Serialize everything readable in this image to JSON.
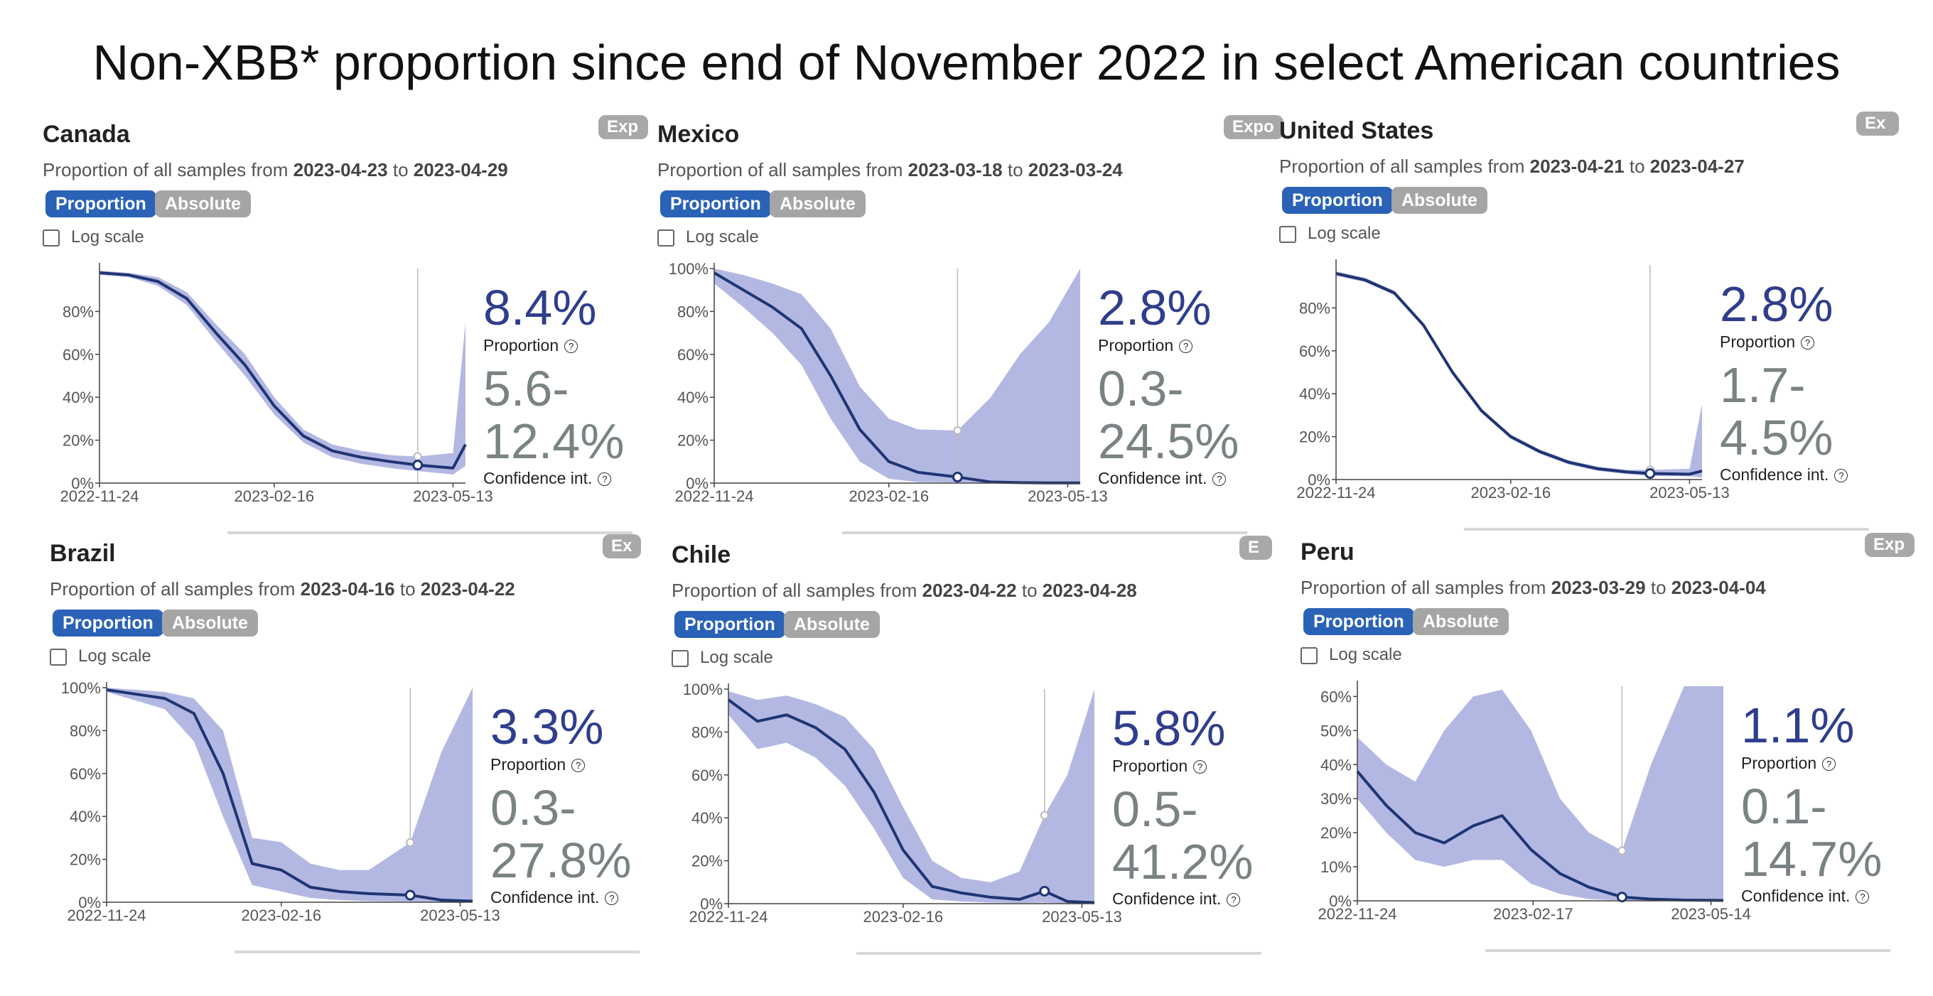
{
  "title": "Non-XBB* proportion since end of November 2022 in select American countries",
  "labels": {
    "subtitle_prefix": "Proportion of all samples from",
    "to": "to",
    "proportion_button": "Proportion",
    "absolute_button": "Absolute",
    "log_scale": "Log scale",
    "proportion_label": "Proportion",
    "ci_label": "Confidence int.",
    "help_glyph": "?"
  },
  "colors": {
    "line": "#1f3573",
    "band": "#b3b8e3",
    "accent": "#2962b7",
    "number": "#2f3e8c",
    "ci_number": "#7a8383"
  },
  "panels": [
    {
      "country": "Canada",
      "export_label": "Exp",
      "date_from": "2023-04-23",
      "date_to": "2023-04-29",
      "proportion": "8.4%",
      "ci_low": "5.6-",
      "ci_high": "12.4%"
    },
    {
      "country": "Mexico",
      "export_label": "Expo",
      "date_from": "2023-03-18",
      "date_to": "2023-03-24",
      "proportion": "2.8%",
      "ci_low": "0.3-",
      "ci_high": "24.5%"
    },
    {
      "country": "United States",
      "export_label": "Ex",
      "date_from": "2023-04-21",
      "date_to": "2023-04-27",
      "proportion": "2.8%",
      "ci_low": "1.7-",
      "ci_high": "4.5%"
    },
    {
      "country": "Brazil",
      "export_label": "Ex",
      "date_from": "2023-04-16",
      "date_to": "2023-04-22",
      "proportion": "3.3%",
      "ci_low": "0.3-",
      "ci_high": "27.8%"
    },
    {
      "country": "Chile",
      "export_label": "E",
      "date_from": "2023-04-22",
      "date_to": "2023-04-28",
      "proportion": "5.8%",
      "ci_low": "0.5-",
      "ci_high": "41.2%"
    },
    {
      "country": "Peru",
      "export_label": "Exp",
      "date_from": "2023-03-29",
      "date_to": "2023-04-04",
      "proportion": "1.1%",
      "ci_low": "0.1-",
      "ci_high": "14.7%"
    }
  ],
  "chart_data": [
    {
      "type": "area",
      "title": "Canada",
      "xlabel": "",
      "ylabel": "",
      "ylim": [
        0,
        100
      ],
      "yticks": [
        "0%",
        "20%",
        "40%",
        "60%",
        "80%"
      ],
      "xticks": [
        "2022-11-24",
        "2023-02-16",
        "2023-05-13"
      ],
      "x_range": [
        "2022-11-24",
        "2023-05-19"
      ],
      "marker_date": "2023-04-26",
      "series": [
        {
          "x": [
            "2022-11-24",
            "2022-12-08",
            "2022-12-22",
            "2023-01-05",
            "2023-01-19",
            "2023-02-02",
            "2023-02-16",
            "2023-03-02",
            "2023-03-16",
            "2023-03-30",
            "2023-04-13",
            "2023-04-26",
            "2023-05-13",
            "2023-05-19"
          ],
          "y": [
            98,
            97,
            94,
            86,
            70,
            55,
            36,
            22,
            15,
            12,
            10,
            8.4,
            7,
            18
          ],
          "lower": [
            97,
            96,
            92,
            83,
            66,
            50,
            32,
            19,
            12,
            9,
            7,
            5.6,
            4,
            8
          ],
          "upper": [
            99,
            98,
            96,
            89,
            74,
            60,
            40,
            25,
            18,
            15,
            13,
            12.4,
            14,
            75
          ]
        }
      ]
    },
    {
      "type": "area",
      "title": "Mexico",
      "xlabel": "",
      "ylabel": "",
      "ylim": [
        0,
        100
      ],
      "yticks": [
        "0%",
        "20%",
        "40%",
        "60%",
        "80%",
        "100%"
      ],
      "xticks": [
        "2022-11-24",
        "2023-02-16",
        "2023-05-13"
      ],
      "x_range": [
        "2022-11-24",
        "2023-05-19"
      ],
      "marker_date": "2023-03-21",
      "series": [
        {
          "x": [
            "2022-11-24",
            "2022-12-08",
            "2022-12-22",
            "2023-01-05",
            "2023-01-19",
            "2023-02-02",
            "2023-02-16",
            "2023-03-02",
            "2023-03-21",
            "2023-04-06",
            "2023-04-20",
            "2023-05-04",
            "2023-05-19"
          ],
          "y": [
            98,
            90,
            82,
            72,
            50,
            25,
            10,
            5,
            2.8,
            0.5,
            0.2,
            0.1,
            0.1
          ],
          "lower": [
            93,
            82,
            70,
            55,
            30,
            10,
            2,
            0.5,
            0.3,
            0,
            0,
            0,
            0
          ],
          "upper": [
            100,
            97,
            93,
            88,
            72,
            45,
            30,
            25,
            24.5,
            40,
            60,
            75,
            100
          ]
        }
      ]
    },
    {
      "type": "area",
      "title": "United States",
      "xlabel": "",
      "ylabel": "",
      "ylim": [
        0,
        100
      ],
      "yticks": [
        "0%",
        "20%",
        "40%",
        "60%",
        "80%"
      ],
      "xticks": [
        "2022-11-24",
        "2023-02-16",
        "2023-05-13"
      ],
      "x_range": [
        "2022-11-24",
        "2023-05-19"
      ],
      "marker_date": "2023-04-24",
      "series": [
        {
          "x": [
            "2022-11-24",
            "2022-12-08",
            "2022-12-22",
            "2023-01-05",
            "2023-01-19",
            "2023-02-02",
            "2023-02-16",
            "2023-03-02",
            "2023-03-16",
            "2023-03-30",
            "2023-04-13",
            "2023-04-24",
            "2023-05-13",
            "2023-05-19"
          ],
          "y": [
            96,
            93,
            87,
            72,
            50,
            32,
            20,
            13,
            8,
            5,
            3.5,
            2.8,
            2.5,
            4
          ],
          "lower": [
            95,
            92,
            86,
            71,
            49,
            31,
            19,
            12,
            7,
            4,
            2.5,
            1.7,
            1.5,
            1
          ],
          "upper": [
            97,
            94,
            88,
            73,
            51,
            33,
            21,
            14,
            9,
            6,
            4.5,
            4.5,
            5,
            35
          ]
        }
      ]
    },
    {
      "type": "area",
      "title": "Brazil",
      "xlabel": "",
      "ylabel": "",
      "ylim": [
        0,
        100
      ],
      "yticks": [
        "0%",
        "20%",
        "40%",
        "60%",
        "80%",
        "100%"
      ],
      "xticks": [
        "2022-11-24",
        "2023-02-16",
        "2023-05-13"
      ],
      "x_range": [
        "2022-11-24",
        "2023-05-19"
      ],
      "marker_date": "2023-04-19",
      "series": [
        {
          "x": [
            "2022-11-24",
            "2022-12-08",
            "2022-12-22",
            "2023-01-05",
            "2023-01-19",
            "2023-02-02",
            "2023-02-16",
            "2023-03-02",
            "2023-03-16",
            "2023-03-30",
            "2023-04-19",
            "2023-05-04",
            "2023-05-19"
          ],
          "y": [
            99,
            97,
            95,
            88,
            60,
            18,
            15,
            7,
            5,
            4,
            3.3,
            1,
            0.5
          ],
          "lower": [
            98,
            94,
            90,
            75,
            40,
            8,
            5,
            2,
            1,
            0.5,
            0.3,
            0,
            0
          ],
          "upper": [
            100,
            99,
            98,
            95,
            80,
            30,
            28,
            18,
            15,
            15,
            27.8,
            70,
            100
          ]
        }
      ]
    },
    {
      "type": "area",
      "title": "Chile",
      "xlabel": "",
      "ylabel": "",
      "ylim": [
        0,
        100
      ],
      "yticks": [
        "0%",
        "20%",
        "40%",
        "60%",
        "80%",
        "100%"
      ],
      "xticks": [
        "2022-11-24",
        "2023-02-16",
        "2023-05-13"
      ],
      "x_range": [
        "2022-11-24",
        "2023-05-19"
      ],
      "marker_date": "2023-04-25",
      "series": [
        {
          "x": [
            "2022-11-24",
            "2022-12-08",
            "2022-12-22",
            "2023-01-05",
            "2023-01-19",
            "2023-02-02",
            "2023-02-16",
            "2023-03-02",
            "2023-03-16",
            "2023-03-30",
            "2023-04-13",
            "2023-04-25",
            "2023-05-06",
            "2023-05-19"
          ],
          "y": [
            95,
            85,
            88,
            82,
            72,
            52,
            25,
            8,
            5,
            3,
            2,
            5.8,
            1,
            0.5
          ],
          "lower": [
            88,
            72,
            75,
            68,
            55,
            35,
            12,
            2,
            1,
            0.5,
            0.3,
            0.5,
            0,
            0
          ],
          "upper": [
            99,
            95,
            97,
            93,
            87,
            72,
            45,
            20,
            12,
            10,
            15,
            41.2,
            60,
            100
          ]
        }
      ]
    },
    {
      "type": "area",
      "title": "Peru",
      "xlabel": "",
      "ylabel": "",
      "ylim": [
        0,
        63
      ],
      "yticks": [
        "0%",
        "10%",
        "20%",
        "30%",
        "40%",
        "50%",
        "60%"
      ],
      "xticks": [
        "2022-11-24",
        "2023-02-17",
        "2023-05-14"
      ],
      "x_range": [
        "2022-11-24",
        "2023-05-20"
      ],
      "marker_date": "2023-04-01",
      "series": [
        {
          "x": [
            "2022-11-24",
            "2022-12-08",
            "2022-12-22",
            "2023-01-05",
            "2023-01-19",
            "2023-02-02",
            "2023-02-16",
            "2023-03-02",
            "2023-03-16",
            "2023-04-01",
            "2023-04-15",
            "2023-05-01",
            "2023-05-20"
          ],
          "y": [
            38,
            28,
            20,
            17,
            22,
            25,
            15,
            8,
            4,
            1.1,
            0.5,
            0.2,
            0.1
          ],
          "lower": [
            30,
            20,
            12,
            10,
            12,
            12,
            5,
            2,
            0.5,
            0.1,
            0,
            0,
            0
          ],
          "upper": [
            48,
            40,
            35,
            50,
            60,
            62,
            50,
            30,
            20,
            14.7,
            40,
            63,
            63
          ]
        }
      ]
    }
  ]
}
